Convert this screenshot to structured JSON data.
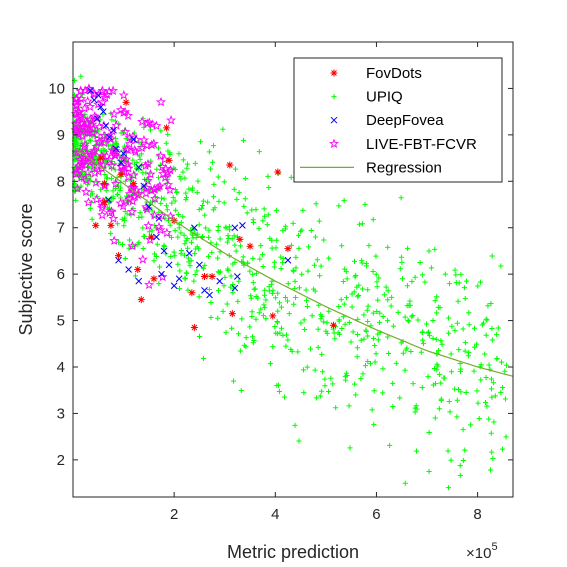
{
  "chart_data": {
    "type": "scatter",
    "xlabel": "Metric prediction",
    "ylabel": "Subjective score",
    "x_exponent_label": "×10",
    "x_exponent_power": "5",
    "xlim": [
      0,
      8.7
    ],
    "ylim": [
      1.2,
      11.0
    ],
    "x_ticks": [
      2,
      4,
      6,
      8
    ],
    "y_ticks": [
      2,
      3,
      4,
      5,
      6,
      7,
      8,
      9,
      10
    ],
    "x_units_note": "x values in units of 10^5",
    "legend_position": "top-right",
    "grid": false,
    "series": [
      {
        "name": "FovDots",
        "marker": "asterisk",
        "color": "#ff0000",
        "points": [
          [
            0.62,
            7.95
          ],
          [
            0.45,
            7.05
          ],
          [
            0.62,
            7.55
          ],
          [
            0.75,
            7.05
          ],
          [
            0.95,
            8.15
          ],
          [
            1.05,
            9.7
          ],
          [
            1.2,
            7.95
          ],
          [
            1.28,
            6.1
          ],
          [
            1.35,
            5.45
          ],
          [
            1.6,
            5.9
          ],
          [
            1.85,
            9.15
          ],
          [
            1.9,
            8.45
          ],
          [
            2.0,
            7.15
          ],
          [
            2.35,
            5.6
          ],
          [
            2.4,
            4.85
          ],
          [
            2.6,
            5.95
          ],
          [
            2.75,
            5.95
          ],
          [
            3.1,
            8.35
          ],
          [
            3.15,
            5.15
          ],
          [
            3.3,
            6.75
          ],
          [
            3.5,
            6.6
          ],
          [
            3.95,
            5.1
          ],
          [
            4.05,
            8.2
          ],
          [
            4.25,
            6.55
          ],
          [
            5.15,
            4.9
          ],
          [
            0.55,
            8.5
          ],
          [
            0.9,
            6.4
          ],
          [
            1.55,
            6.8
          ]
        ]
      },
      {
        "name": "UPIQ",
        "marker": "plus",
        "color": "#00ff00",
        "generated": true,
        "count": 1100,
        "note": "dense cloud of green '+' markers following the regression trend"
      },
      {
        "name": "DeepFovea",
        "marker": "cross",
        "color": "#0000ff",
        "points": [
          [
            0.35,
            9.95
          ],
          [
            0.42,
            9.75
          ],
          [
            0.5,
            9.85
          ],
          [
            0.55,
            9.6
          ],
          [
            0.48,
            9.35
          ],
          [
            0.6,
            9.5
          ],
          [
            0.65,
            9.2
          ],
          [
            0.72,
            8.95
          ],
          [
            0.8,
            9.1
          ],
          [
            0.85,
            8.7
          ],
          [
            0.95,
            8.4
          ],
          [
            1.0,
            8.6
          ],
          [
            1.2,
            8.9
          ],
          [
            1.3,
            8.3
          ],
          [
            1.4,
            7.9
          ],
          [
            1.5,
            7.45
          ],
          [
            1.7,
            7.2
          ],
          [
            1.65,
            6.8
          ],
          [
            1.8,
            6.5
          ],
          [
            1.9,
            6.2
          ],
          [
            2.0,
            5.75
          ],
          [
            2.1,
            5.9
          ],
          [
            2.3,
            6.45
          ],
          [
            2.4,
            7.0
          ],
          [
            2.5,
            6.2
          ],
          [
            2.6,
            5.65
          ],
          [
            2.7,
            5.55
          ],
          [
            2.9,
            5.85
          ],
          [
            3.2,
            7.0
          ],
          [
            3.35,
            7.05
          ],
          [
            3.2,
            5.7
          ],
          [
            3.25,
            5.95
          ],
          [
            4.25,
            6.3
          ],
          [
            1.1,
            6.1
          ],
          [
            1.3,
            5.85
          ],
          [
            0.9,
            6.3
          ],
          [
            1.75,
            6.0
          ],
          [
            0.7,
            7.6
          ]
        ]
      },
      {
        "name": "LIVE-FBT-FCVR",
        "marker": "pentagram",
        "color": "#ff00ff",
        "generated": true,
        "count": 210,
        "note": "magenta star markers concentrated at x 0.0–1.9, y 5.7–10.0"
      }
    ],
    "regression": {
      "name": "Regression",
      "color": "#77ac30",
      "model": "exponential",
      "points": [
        [
          0.0,
          8.75
        ],
        [
          1.0,
          7.95
        ],
        [
          2.0,
          7.15
        ],
        [
          3.0,
          6.45
        ],
        [
          4.0,
          5.85
        ],
        [
          5.0,
          5.3
        ],
        [
          6.0,
          4.8
        ],
        [
          7.0,
          4.35
        ],
        [
          8.0,
          4.0
        ],
        [
          8.7,
          3.8
        ]
      ]
    }
  }
}
